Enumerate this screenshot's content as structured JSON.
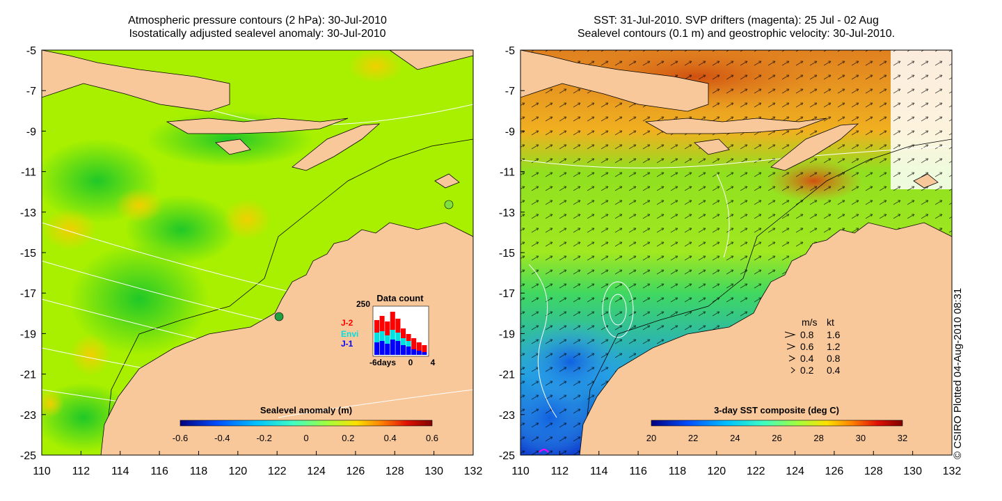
{
  "left_panel": {
    "title_line1": "Atmospheric pressure contours (2 hPa): 30-Jul-2010",
    "title_line2": "Isostatically adjusted sealevel anomaly: 30-Jul-2010",
    "colorbar": {
      "label": "Sealevel anomaly (m)",
      "ticks": [
        "-0.6",
        "-0.4",
        "-0.2",
        "0",
        "0.2",
        "0.4",
        "0.6"
      ],
      "colors": [
        "#00007f",
        "#0050ff",
        "#00c0ff",
        "#40ffc0",
        "#a0ff40",
        "#ffe000",
        "#ff8000",
        "#e01000",
        "#800000"
      ]
    },
    "inset": {
      "title": "Data count",
      "y_max_label": "250",
      "x_labels": [
        "-6days",
        "0",
        "4"
      ],
      "legend": [
        {
          "label": "J-2",
          "color": "#ff0000"
        },
        {
          "label": "Envi",
          "color": "#00e0e0"
        },
        {
          "label": "J-1",
          "color": "#0000ff"
        }
      ]
    }
  },
  "right_panel": {
    "title_line1": "SST: 31-Jul-2010. SVP drifters (magenta): 25 Jul - 02 Aug",
    "title_line2": "Sealevel contours (0.1 m) and geostrophic velocity: 30-Jul-2010.",
    "colorbar": {
      "label": "3-day SST composite (deg C)",
      "ticks": [
        "20",
        "22",
        "24",
        "26",
        "28",
        "30",
        "32"
      ],
      "colors": [
        "#00007f",
        "#0050ff",
        "#00c0ff",
        "#40ffc0",
        "#a0ff40",
        "#ffe000",
        "#ff8000",
        "#e01000",
        "#800000"
      ]
    },
    "speed_legend": {
      "header_ms": "m/s",
      "header_kt": "kt",
      "rows": [
        {
          "ms": "0.8",
          "kt": "1.6"
        },
        {
          "ms": "0.6",
          "kt": "1.2"
        },
        {
          "ms": "0.4",
          "kt": "0.8"
        },
        {
          "ms": "0.2",
          "kt": "0.4"
        }
      ]
    }
  },
  "axes": {
    "lat_labels": [
      "-5",
      "-7",
      "-9",
      "-11",
      "-13",
      "-15",
      "-17",
      "-19",
      "-21",
      "-23",
      "-25"
    ],
    "lon_labels": [
      "110",
      "112",
      "114",
      "116",
      "118",
      "120",
      "122",
      "124",
      "126",
      "128",
      "130",
      "132"
    ]
  },
  "colors": {
    "land": "#f8c89a",
    "ocean_low_anomaly": "#40d820",
    "ocean_mid_anomaly": "#a8f000",
    "ocean_high_anomaly": "#f0d000",
    "sst_warm": "#f09020",
    "sst_cool": "#40a0f0"
  },
  "credit": "© CSIRO Plotted 04-Aug-2010 08:31"
}
